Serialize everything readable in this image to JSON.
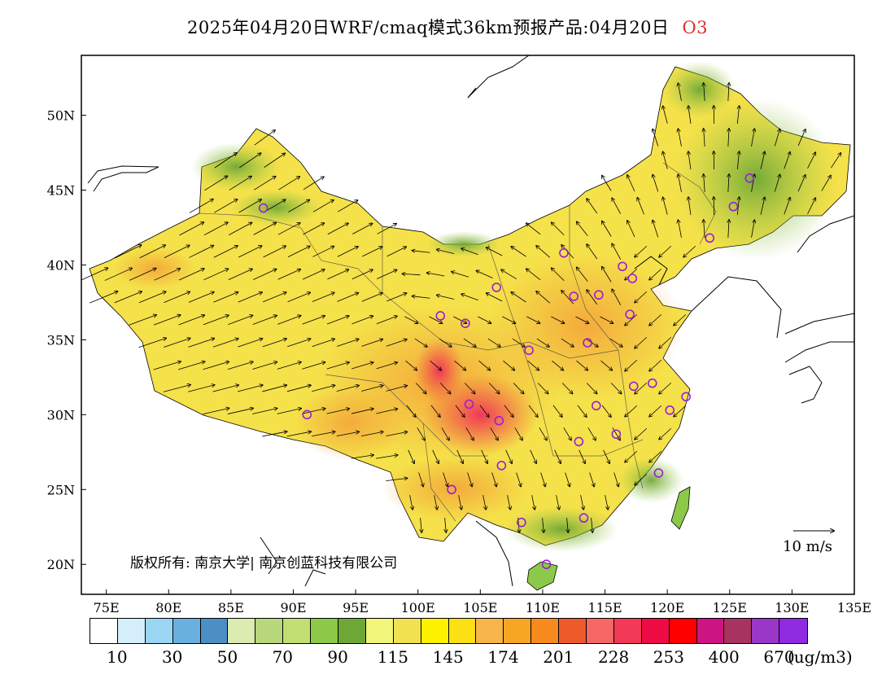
{
  "title": {
    "main": "2025年04月20日WRF/cmaq模式36km预报产品:04月20日",
    "pollutant": "O3"
  },
  "map": {
    "lon_range": [
      73,
      135
    ],
    "lat_range": [
      18,
      54
    ],
    "lon_ticks": [
      "75E",
      "80E",
      "85E",
      "90E",
      "95E",
      "100E",
      "105E",
      "110E",
      "115E",
      "120E",
      "125E",
      "130E",
      "135E"
    ],
    "lat_ticks": [
      "20N",
      "25N",
      "30N",
      "35N",
      "40N",
      "45N",
      "50N"
    ],
    "copyright": "版权所有: 南京大学| 南京创蓝科技有限公司",
    "wind_scale_label": "10 m/s",
    "colors": {
      "background": "#f5e14a",
      "green": "#7cb83c",
      "orange": "#f3a83a",
      "red": "#f04a5a",
      "station_marker": "#9b1ed6"
    },
    "stations": [
      {
        "lon": 87.6,
        "lat": 43.8
      },
      {
        "lon": 91.1,
        "lat": 30.0
      },
      {
        "lon": 101.8,
        "lat": 36.6
      },
      {
        "lon": 103.8,
        "lat": 36.1
      },
      {
        "lon": 106.3,
        "lat": 38.5
      },
      {
        "lon": 104.1,
        "lat": 30.7
      },
      {
        "lon": 106.5,
        "lat": 29.6
      },
      {
        "lon": 106.7,
        "lat": 26.6
      },
      {
        "lon": 102.7,
        "lat": 25.0
      },
      {
        "lon": 108.3,
        "lat": 22.8
      },
      {
        "lon": 110.3,
        "lat": 20.0
      },
      {
        "lon": 108.9,
        "lat": 34.3
      },
      {
        "lon": 111.7,
        "lat": 40.8
      },
      {
        "lon": 112.5,
        "lat": 37.9
      },
      {
        "lon": 114.5,
        "lat": 38.0
      },
      {
        "lon": 116.4,
        "lat": 39.9
      },
      {
        "lon": 117.2,
        "lat": 39.1
      },
      {
        "lon": 117.0,
        "lat": 36.7
      },
      {
        "lon": 113.6,
        "lat": 34.8
      },
      {
        "lon": 114.3,
        "lat": 30.6
      },
      {
        "lon": 112.9,
        "lat": 28.2
      },
      {
        "lon": 115.9,
        "lat": 28.7
      },
      {
        "lon": 117.3,
        "lat": 31.9
      },
      {
        "lon": 118.8,
        "lat": 32.1
      },
      {
        "lon": 120.2,
        "lat": 30.3
      },
      {
        "lon": 121.5,
        "lat": 31.2
      },
      {
        "lon": 119.3,
        "lat": 26.1
      },
      {
        "lon": 113.3,
        "lat": 23.1
      },
      {
        "lon": 123.4,
        "lat": 41.8
      },
      {
        "lon": 125.3,
        "lat": 43.9
      },
      {
        "lon": 126.6,
        "lat": 45.8
      }
    ]
  },
  "colorbar": {
    "colors": [
      "#ffffff",
      "#d4eefa",
      "#9ad6f4",
      "#6ab0de",
      "#4b8fc4",
      "#dcebb0",
      "#b9d77c",
      "#c2df72",
      "#8cc948",
      "#6fa736",
      "#f2f77a",
      "#f2e151",
      "#fff200",
      "#fbe013",
      "#f8b54a",
      "#f7a623",
      "#f68a1f",
      "#ef5a2b",
      "#f76865",
      "#f23956",
      "#ef0b44",
      "#fe0000",
      "#cc1582",
      "#a83360",
      "#9a37c8",
      "#8e2ae0"
    ],
    "labels": [
      {
        "text": "10",
        "index": 1
      },
      {
        "text": "30",
        "index": 3
      },
      {
        "text": "50",
        "index": 5
      },
      {
        "text": "70",
        "index": 7
      },
      {
        "text": "90",
        "index": 9
      },
      {
        "text": "115",
        "index": 11
      },
      {
        "text": "145",
        "index": 13
      },
      {
        "text": "174",
        "index": 15
      },
      {
        "text": "201",
        "index": 17
      },
      {
        "text": "228",
        "index": 19
      },
      {
        "text": "253",
        "index": 21
      },
      {
        "text": "400",
        "index": 23
      },
      {
        "text": "670",
        "index": 25
      }
    ],
    "unit": "(ug/m3)"
  }
}
